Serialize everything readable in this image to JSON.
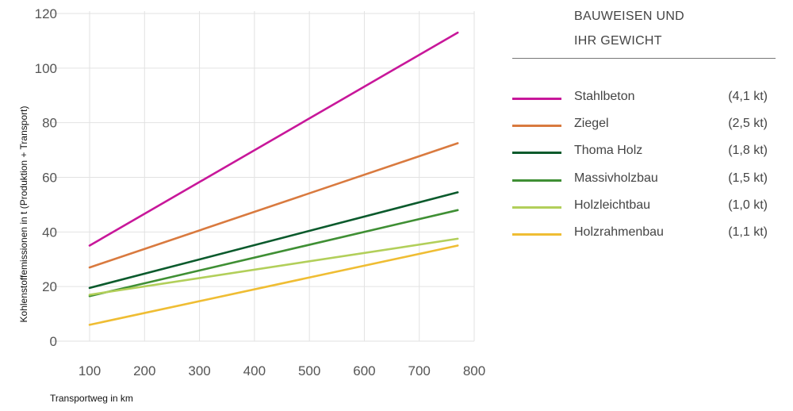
{
  "chart_data": {
    "type": "line",
    "xlabel": "Transportweg in km",
    "ylabel": "Kohlenstoffemissionen in t (Produktion + Transport)",
    "xlim": [
      100,
      800
    ],
    "ylim": [
      0,
      120
    ],
    "xticks": [
      100,
      200,
      300,
      400,
      500,
      600,
      700,
      800
    ],
    "yticks": [
      0,
      20,
      40,
      60,
      80,
      100,
      120
    ],
    "grid": true,
    "legend_position": "right",
    "legend_title_lines": [
      "BAUWEISEN UND",
      "IHR GEWICHT"
    ],
    "series": [
      {
        "name": "Stahlbeton",
        "weight": "(4,1 kt)",
        "color": "#c8179a",
        "x": [
          100,
          770
        ],
        "y": [
          35,
          113
        ]
      },
      {
        "name": "Ziegel",
        "weight": "(2,5 kt)",
        "color": "#d97a3f",
        "x": [
          100,
          770
        ],
        "y": [
          27,
          72.5
        ]
      },
      {
        "name": "Thoma Holz",
        "weight": "(1,8 kt)",
        "color": "#0a5a2c",
        "x": [
          100,
          770
        ],
        "y": [
          19.5,
          54.5
        ]
      },
      {
        "name": "Massivholzbau",
        "weight": "(1,5 kt)",
        "color": "#3f8f34",
        "x": [
          100,
          770
        ],
        "y": [
          16.5,
          48
        ]
      },
      {
        "name": "Holzleichtbau",
        "weight": "(1,0 kt)",
        "color": "#b2cf5a",
        "x": [
          100,
          770
        ],
        "y": [
          17,
          37.5
        ]
      },
      {
        "name": "Holzrahmenbau",
        "weight": "(1,1 kt)",
        "color": "#efbd33",
        "x": [
          100,
          770
        ],
        "y": [
          6,
          35
        ]
      }
    ]
  }
}
